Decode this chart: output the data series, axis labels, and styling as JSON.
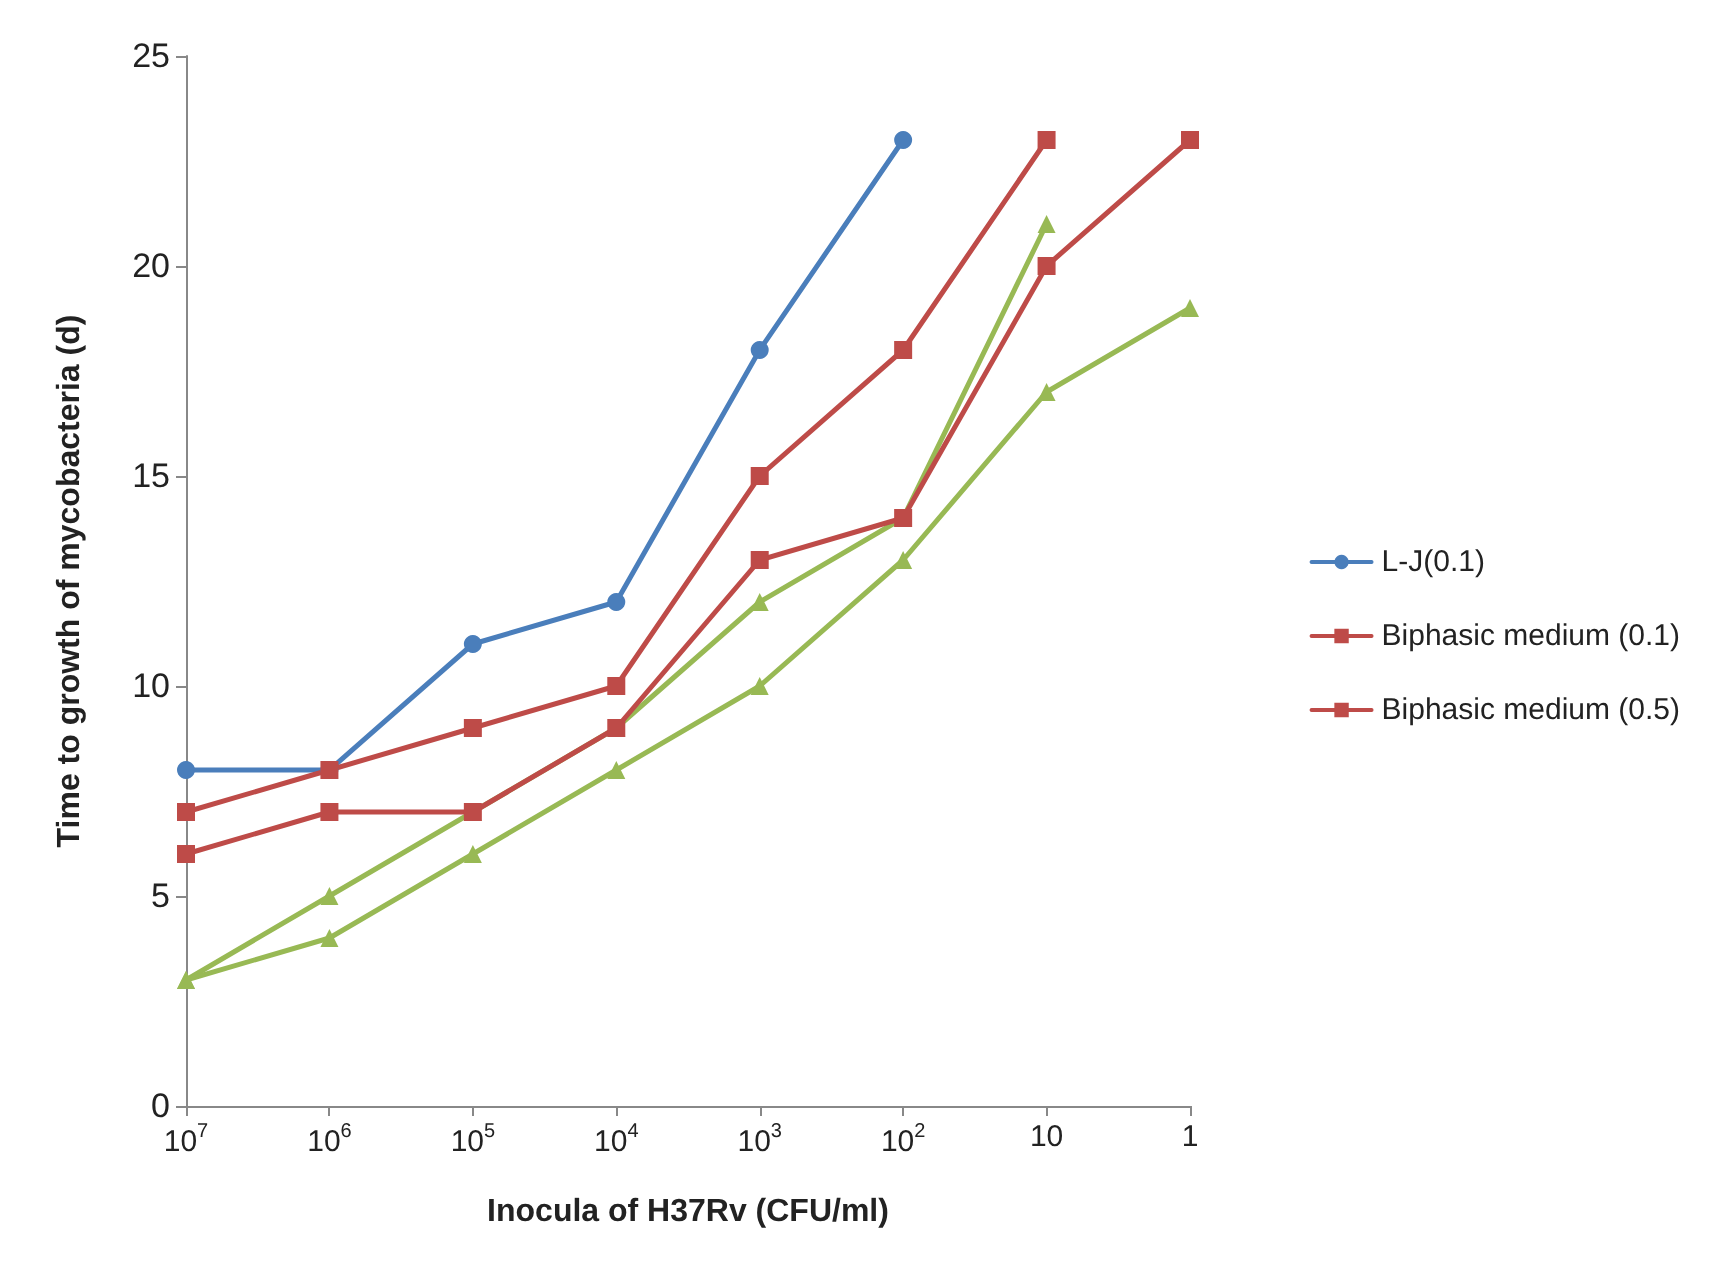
{
  "chart_data": {
    "type": "line",
    "xlabel": "Inocula of H37Rv (CFU/ml)",
    "ylabel": "Time to growth of mycobacteria (d)",
    "categories": [
      "10$^{7}$",
      "10$^{6}$",
      "10$^{5}$",
      "10$^{4}$",
      "10$^{3}$",
      "10$^{2}$",
      "10",
      "1"
    ],
    "ylim": [
      0,
      25
    ],
    "yticks": [
      0,
      5,
      10,
      15,
      20,
      25
    ],
    "grid": false,
    "legend": "right",
    "series": [
      {
        "name": "L-J(0.1)",
        "color": "#4a7ebb",
        "marker": "circle",
        "values": [
          8,
          8,
          11,
          12,
          18,
          23,
          null,
          null
        ]
      },
      {
        "name": "Biphasic medium (0.1)",
        "color": "#be4b48",
        "marker": "square",
        "values": [
          7,
          8,
          9,
          10,
          15,
          18,
          23,
          null
        ]
      },
      {
        "color": "#98b954",
        "marker": "triangle",
        "values": [
          3,
          5,
          7,
          9,
          12,
          14,
          21,
          null
        ]
      },
      {
        "name": "Biphasic medium (0.5)",
        "color": "#be4b48",
        "marker": "square",
        "values": [
          6,
          7,
          7,
          9,
          13,
          14,
          20,
          23
        ]
      },
      {
        "color": "#98b954",
        "marker": "triangle",
        "values": [
          3,
          4,
          6,
          8,
          10,
          13,
          17,
          19
        ]
      }
    ]
  }
}
